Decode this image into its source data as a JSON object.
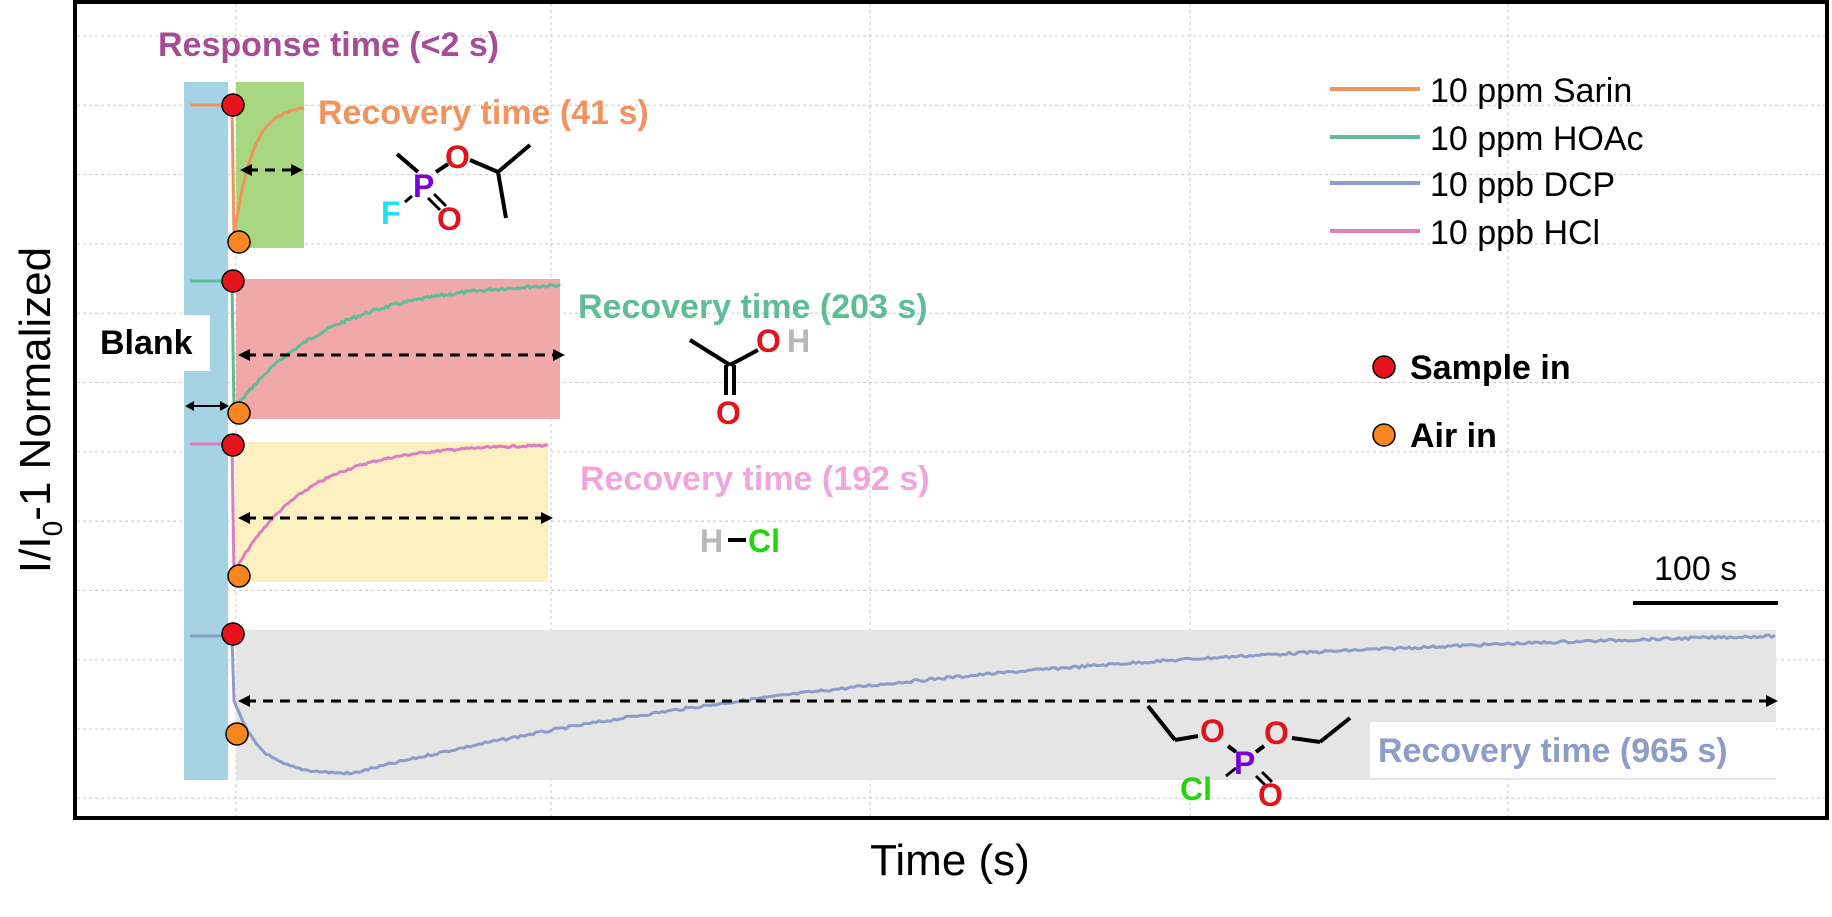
{
  "chart_data": {
    "type": "line",
    "xlabel": "Time (s)",
    "ylabel_main": "I/I",
    "ylabel_sub": "0",
    "ylabel_rest": "-1 Normalized",
    "grid": true,
    "legend_position": "top-right",
    "series": [
      {
        "name": "10 ppm Sarin",
        "color": "#f0935e",
        "recovery_label": "Recovery time (41 s)",
        "recovery_s": 41
      },
      {
        "name": "10 ppm HOAc",
        "color": "#5ebd97",
        "recovery_label": "Recovery time (203 s)",
        "recovery_s": 203
      },
      {
        "name": "10 ppb DCP",
        "color": "#8d9cc8",
        "recovery_label": "Recovery time (965 s)",
        "recovery_s": 965
      },
      {
        "name": "10 ppb HCl",
        "color": "#db7fc0",
        "recovery_label": "Recovery time (192 s)",
        "recovery_s": 192
      }
    ],
    "annotations": {
      "response_time": "Response time (<2 s)",
      "blank": "Blank",
      "sample_in": "Sample in",
      "air_in": "Air in",
      "scale_bar": "100 s"
    },
    "molecule_atoms": {
      "sarin": {
        "P": "P",
        "O": "O",
        "F": "F"
      },
      "hoac": {
        "O": "O",
        "H": "H"
      },
      "hcl": {
        "H": "H",
        "Cl": "Cl"
      },
      "dcp": {
        "Cl": "Cl",
        "P": "P",
        "O": "O"
      }
    },
    "colors": {
      "sample_in_marker": "#e8141c",
      "air_in_marker": "#f7861f",
      "blank_region": "#a6d3e4",
      "sarin_region": "#a9d681",
      "hoac_region": "#f0a8a8",
      "hcl_region": "#fdf0c0",
      "dcp_region": "#e5e5e5",
      "response_label": "#a64d96",
      "phosphorus": "#7a00d6",
      "oxygen": "#e0141c",
      "fluorine": "#1fe3f0",
      "chlorine": "#22d60c",
      "hydrogen": "#b8b8b8"
    }
  }
}
